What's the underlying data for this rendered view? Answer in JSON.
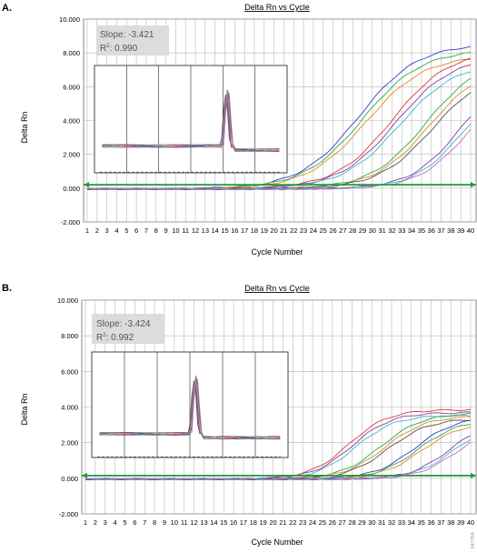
{
  "panels": [
    {
      "label": "A.",
      "annotation": {
        "slope": "Slope: -3.421",
        "r2_prefix": "R",
        "r2_sup": "2",
        "r2_value": ": 0.990"
      }
    },
    {
      "label": "B.",
      "annotation": {
        "slope": "Slope: -3.424",
        "r2_prefix": "R",
        "r2_sup": "2",
        "r2_value": ": 0.992"
      }
    }
  ],
  "watermark": "8477RA",
  "colors": {
    "threshold": "#1f9a3a",
    "grid": "#b8b8b8",
    "series": [
      "#3b3bc8",
      "#d83a3a",
      "#2ea84a",
      "#8a3ea0",
      "#e08a2a",
      "#40b8c8",
      "#555555",
      "#c86ab8"
    ]
  },
  "chart_data": [
    {
      "type": "line",
      "title": "Delta Rn vs Cycle",
      "xlabel": "Cycle Number",
      "ylabel": "Delta Rn",
      "xlim": [
        1,
        40
      ],
      "ylim": [
        -2,
        10
      ],
      "x_ticks": [
        1,
        2,
        3,
        4,
        5,
        6,
        7,
        8,
        9,
        10,
        11,
        12,
        13,
        14,
        15,
        16,
        17,
        18,
        19,
        20,
        21,
        22,
        23,
        24,
        25,
        26,
        27,
        28,
        29,
        30,
        31,
        32,
        33,
        34,
        35,
        36,
        37,
        38,
        39,
        40
      ],
      "y_ticks": [
        "-2.000",
        "0.000",
        "2.000",
        "4.000",
        "6.000",
        "8.000",
        "10.000"
      ],
      "threshold": 0.2,
      "grid": true,
      "series": [
        {
          "midpoint": 29.0,
          "plateau": 8.6,
          "scale": 3.0,
          "count": 3,
          "color": 0
        },
        {
          "midpoint": 32.4,
          "plateau": 8.2,
          "scale": 2.9,
          "count": 3,
          "color": 1
        },
        {
          "midpoint": 35.8,
          "plateau": 7.8,
          "scale": 2.8,
          "count": 3,
          "color": 2
        },
        {
          "midpoint": 39.2,
          "plateau": 7.0,
          "scale": 2.5,
          "count": 3,
          "color": 3
        }
      ],
      "inset": {
        "type": "line",
        "description_values": {
          "baseline": 2.0,
          "peak_position": 0.68,
          "peak_height": 6.3,
          "ylim": [
            0,
            8
          ]
        }
      }
    },
    {
      "type": "line",
      "title": "Delta Rn vs Cycle",
      "xlabel": "Cycle Number",
      "ylabel": "Delta Rn",
      "xlim": [
        1,
        40
      ],
      "ylim": [
        -2,
        10
      ],
      "x_ticks": [
        1,
        2,
        3,
        4,
        5,
        6,
        7,
        8,
        9,
        10,
        11,
        12,
        13,
        14,
        15,
        16,
        17,
        18,
        19,
        20,
        21,
        22,
        23,
        24,
        25,
        26,
        27,
        28,
        29,
        30,
        31,
        32,
        33,
        34,
        35,
        36,
        37,
        38,
        39,
        40
      ],
      "y_ticks": [
        "-2.000",
        "0.000",
        "2.000",
        "4.000",
        "6.000",
        "8.000",
        "10.000"
      ],
      "threshold": 0.15,
      "grid": true,
      "series": [
        {
          "midpoint": 28.0,
          "plateau": 3.9,
          "scale": 2.0,
          "count": 3,
          "color": 1
        },
        {
          "midpoint": 31.3,
          "plateau": 3.7,
          "scale": 2.1,
          "count": 3,
          "color": 2
        },
        {
          "midpoint": 34.7,
          "plateau": 3.5,
          "scale": 2.1,
          "count": 3,
          "color": 0
        },
        {
          "midpoint": 38.2,
          "plateau": 3.3,
          "scale": 2.0,
          "count": 3,
          "color": 3
        }
      ],
      "inset": {
        "type": "line",
        "description_values": {
          "baseline": 1.8,
          "peak_position": 0.52,
          "peak_height": 6.3,
          "ylim": [
            0,
            8
          ]
        }
      }
    }
  ]
}
